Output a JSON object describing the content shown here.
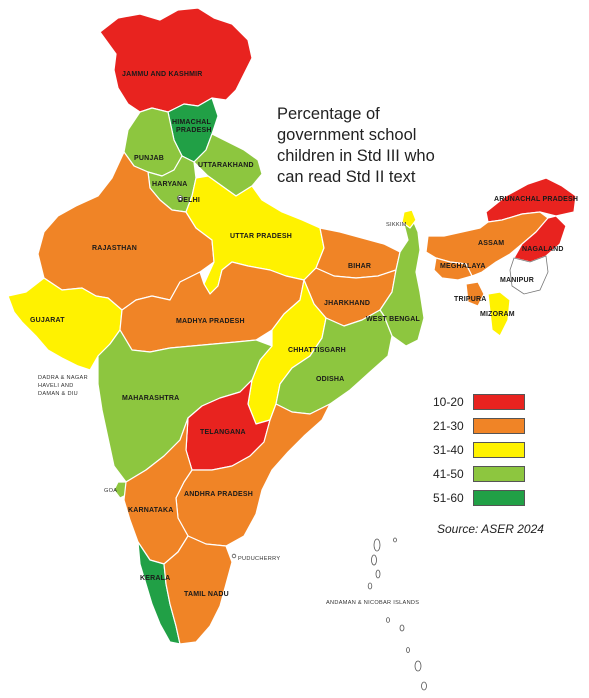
{
  "title_lines": [
    "Percentage of",
    "government school",
    "children in Std III who",
    "can read Std II text"
  ],
  "source": "Source: ASER 2024",
  "legend": [
    {
      "label": "10-20",
      "color": "#e8231f"
    },
    {
      "label": "21-30",
      "color": "#f08426"
    },
    {
      "label": "31-40",
      "color": "#fff200"
    },
    {
      "label": "41-50",
      "color": "#8dc63f"
    },
    {
      "label": "51-60",
      "color": "#21a046"
    }
  ],
  "states": {
    "jk": "JAMMU AND KASHMIR",
    "hp_1": "HIMACHAL",
    "hp_2": "PRADESH",
    "punjab": "PUNJAB",
    "uttarakhand": "UTTARAKHAND",
    "haryana": "HARYANA",
    "delhi": "DELHI",
    "rajasthan": "RAJASTHAN",
    "up": "UTTAR PRADESH",
    "sikkim": "SIKKIM",
    "arunachal": "ARUNACHAL PRADESH",
    "assam": "ASSAM",
    "nagaland": "NAGALAND",
    "meghalaya": "MEGHALAYA",
    "manipur": "MANIPUR",
    "bihar": "BIHAR",
    "tripura": "TRIPURA",
    "mizoram": "MIZORAM",
    "jharkhand": "JHARKHAND",
    "wb": "WEST BENGAL",
    "gujarat": "GUJARAT",
    "mp": "MADHYA PRADESH",
    "chhattisgarh": "CHHATTISGARH",
    "dnh_1": "DADRA & NAGAR",
    "dnh_2": "HAVELI AND",
    "dnh_3": "DAMAN & DIU",
    "odisha": "ODISHA",
    "maharashtra": "MAHARASHTRA",
    "telangana": "TELANGANA",
    "goa": "GOA",
    "ap": "ANDHRA PRADESH",
    "karnataka": "KARNATAKA",
    "puducherry": "PUDUCHERRY",
    "kerala": "KERALA",
    "tn": "TAMIL NADU",
    "andaman": "ANDAMAN & NICOBAR ISLANDS"
  }
}
